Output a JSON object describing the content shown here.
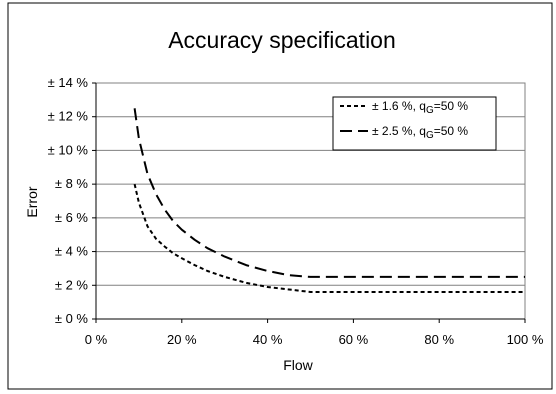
{
  "chart_data": {
    "type": "line",
    "title": "Accuracy specification",
    "xlabel": "Flow",
    "ylabel": "Error",
    "xlim": [
      0,
      100
    ],
    "ylim": [
      0,
      14
    ],
    "x_ticks": [
      0,
      20,
      40,
      60,
      80,
      100
    ],
    "x_tick_labels": [
      "0 %",
      "20 %",
      "40 %",
      "60 %",
      "80 %",
      "100 %"
    ],
    "y_ticks": [
      0,
      2,
      4,
      6,
      8,
      10,
      12,
      14
    ],
    "y_tick_labels": [
      "± 0 %",
      "± 2 %",
      "± 4 %",
      "± 6 %",
      "± 8 %",
      "± 10 %",
      "± 12 %",
      "± 14 %"
    ],
    "grid": "horizontal",
    "legend_position": "top-right",
    "series": [
      {
        "name_main": "± 1.6 %, q",
        "name_sub": "G",
        "name_tail": "=50 %",
        "style": "short-dash",
        "x": [
          9,
          10,
          12,
          14,
          16,
          18,
          20,
          23,
          26,
          30,
          35,
          40,
          45,
          50,
          60,
          70,
          80,
          90,
          100
        ],
        "y": [
          8.0,
          6.9,
          5.5,
          4.75,
          4.3,
          3.9,
          3.6,
          3.2,
          2.85,
          2.5,
          2.15,
          1.9,
          1.75,
          1.6,
          1.6,
          1.6,
          1.6,
          1.6,
          1.6
        ]
      },
      {
        "name_main": "± 2.5 %, q",
        "name_sub": "G",
        "name_tail": "=50 %",
        "style": "long-dash",
        "x": [
          9,
          10,
          12,
          14,
          16,
          18,
          20,
          23,
          26,
          30,
          35,
          40,
          45,
          50,
          60,
          70,
          80,
          90,
          100
        ],
        "y": [
          12.5,
          10.7,
          8.6,
          7.4,
          6.5,
          5.8,
          5.3,
          4.7,
          4.2,
          3.7,
          3.2,
          2.85,
          2.6,
          2.5,
          2.5,
          2.5,
          2.5,
          2.5,
          2.5
        ]
      }
    ]
  }
}
